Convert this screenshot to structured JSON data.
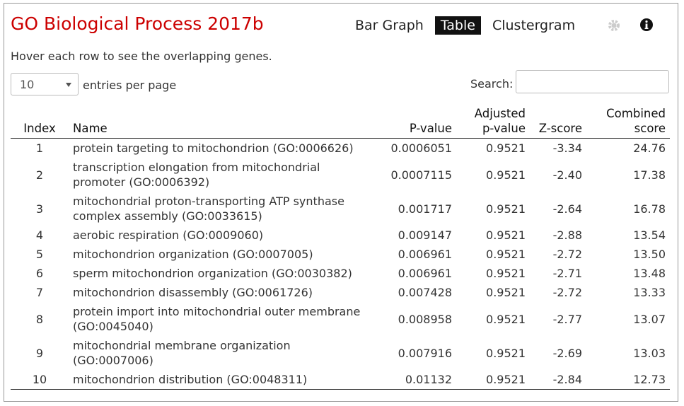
{
  "header": {
    "title": "GO Biological Process 2017b",
    "tabs": [
      "Bar Graph",
      "Table",
      "Clustergram"
    ],
    "active_tab": 1
  },
  "hint": "Hover each row to see the overlapping genes.",
  "controls": {
    "page_size": "10",
    "page_size_label": "entries per page",
    "search_label": "Search:"
  },
  "table": {
    "columns": [
      "Index",
      "Name",
      "P-value",
      "Adjusted p-value",
      "Z-score",
      "Combined score"
    ],
    "rows": [
      [
        "1",
        "protein targeting to mitochondrion (GO:0006626)",
        "0.0006051",
        "0.9521",
        "-3.34",
        "24.76"
      ],
      [
        "2",
        "transcription elongation from mitochondrial promoter (GO:0006392)",
        "0.0007115",
        "0.9521",
        "-2.40",
        "17.38"
      ],
      [
        "3",
        "mitochondrial proton-transporting ATP synthase complex assembly (GO:0033615)",
        "0.001717",
        "0.9521",
        "-2.64",
        "16.78"
      ],
      [
        "4",
        "aerobic respiration (GO:0009060)",
        "0.009147",
        "0.9521",
        "-2.88",
        "13.54"
      ],
      [
        "5",
        "mitochondrion organization (GO:0007005)",
        "0.006961",
        "0.9521",
        "-2.72",
        "13.50"
      ],
      [
        "6",
        "sperm mitochondrion organization (GO:0030382)",
        "0.006961",
        "0.9521",
        "-2.71",
        "13.48"
      ],
      [
        "7",
        "mitochondrion disassembly (GO:0061726)",
        "0.007428",
        "0.9521",
        "-2.72",
        "13.33"
      ],
      [
        "8",
        "protein import into mitochondrial outer membrane (GO:0045040)",
        "0.008958",
        "0.9521",
        "-2.77",
        "13.07"
      ],
      [
        "9",
        "mitochondrial membrane organization (GO:0007006)",
        "0.007916",
        "0.9521",
        "-2.69",
        "13.03"
      ],
      [
        "10",
        "mitochondrion distribution (GO:0048311)",
        "0.01132",
        "0.9521",
        "-2.84",
        "12.73"
      ]
    ]
  }
}
